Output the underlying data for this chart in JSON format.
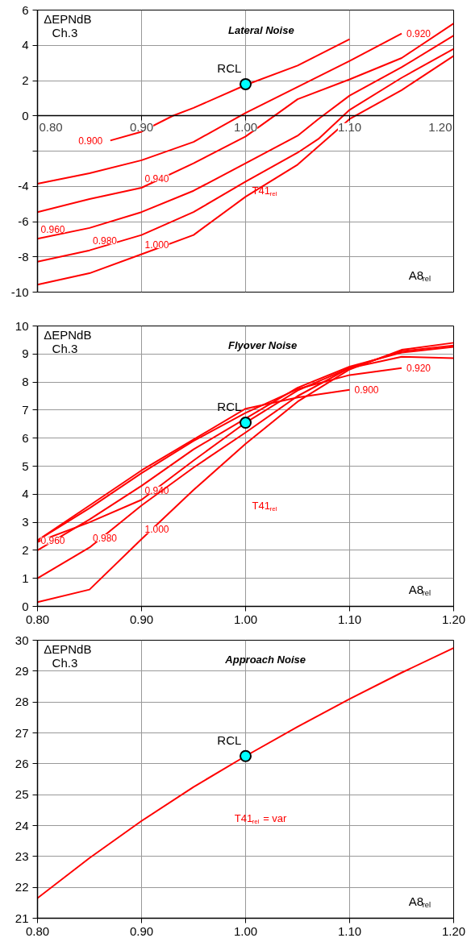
{
  "chart_data": [
    {
      "type": "line",
      "title": "Lateral Noise",
      "xlabel": "A8$_{rel}$",
      "ylabel": "ΔEPNdB",
      "annotations": [
        "Ch.3",
        "T41$_{rel}$"
      ],
      "grid": true,
      "marker": "none",
      "line_style": "solid",
      "xlim": [
        0.8,
        1.2
      ],
      "xticks": [
        {
          "value": 0.8,
          "label": "0.80"
        },
        {
          "value": 0.9,
          "label": "0.90"
        },
        {
          "value": 1.0,
          "label": "1.00"
        },
        {
          "value": 1.1,
          "label": "1.10"
        },
        {
          "value": 1.2,
          "label": "1.20"
        }
      ],
      "ylim": [
        -10,
        6
      ],
      "yticks": [
        -10,
        -8,
        -6,
        -4,
        {
          "value": -2,
          "label": null
        },
        0,
        2,
        4,
        6
      ],
      "series": [
        {
          "name": "0.900",
          "color": "#ff0000",
          "x": [
            0.87,
            0.9,
            0.93,
            0.95,
            1.0,
            1.05,
            1.1
          ],
          "values": [
            -1.4,
            -0.9,
            0.0,
            0.45,
            1.75,
            2.85,
            4.35
          ]
        },
        {
          "name": "0.920",
          "color": "#ff0000",
          "x": [
            0.8,
            0.85,
            0.9,
            0.95,
            1.0,
            1.05,
            1.1,
            1.15
          ],
          "values": [
            -3.85,
            -3.26,
            -2.52,
            -1.48,
            0.17,
            1.64,
            3.11,
            4.67
          ]
        },
        {
          "name": "0.940",
          "color": "#ff0000",
          "x": [
            0.8,
            0.85,
            0.9,
            0.95,
            1.0,
            1.05,
            1.1,
            1.15,
            1.2
          ],
          "values": [
            -5.46,
            -4.72,
            -4.08,
            -2.69,
            -1.17,
            0.94,
            2.07,
            3.28,
            5.24
          ]
        },
        {
          "name": "0.960",
          "color": "#ff0000",
          "x": [
            0.8,
            0.85,
            0.9,
            0.95,
            1.0,
            1.05,
            1.07,
            1.1,
            1.15,
            1.2
          ],
          "values": [
            -6.97,
            -6.36,
            -5.46,
            -4.25,
            -2.69,
            -1.13,
            -0.18,
            1.15,
            2.76,
            4.55
          ]
        },
        {
          "name": "0.980",
          "color": "#ff0000",
          "x": [
            0.8,
            0.85,
            0.9,
            0.95,
            1.0,
            1.05,
            1.07,
            1.1,
            1.15,
            1.2
          ],
          "values": [
            -8.27,
            -7.63,
            -6.76,
            -5.46,
            -3.73,
            -2.09,
            -1.31,
            0.34,
            2.16,
            3.8
          ]
        },
        {
          "name": "1.000",
          "color": "#ff0000",
          "x": [
            0.8,
            0.85,
            0.9,
            0.95,
            1.0,
            1.05,
            1.1,
            1.15,
            1.2
          ],
          "values": [
            -9.58,
            -8.93,
            -7.85,
            -6.76,
            -4.59,
            -2.77,
            -0.18,
            1.46,
            3.4
          ]
        },
        {
          "name": "RCL",
          "type": "scatter",
          "marker": "circle",
          "color": "#00ffff",
          "x": [
            1.0
          ],
          "values": [
            1.8
          ]
        }
      ]
    },
    {
      "type": "line",
      "title": "Flyover Noise",
      "xlabel": "A8$_{rel}$",
      "ylabel": "ΔEPNdB",
      "annotations": [
        "Ch.3",
        "T41$_{rel}$"
      ],
      "grid": true,
      "marker": "none",
      "line_style": "solid",
      "xlim": [
        0.8,
        1.2
      ],
      "xticks": [
        {
          "value": 0.8,
          "label": "0.80"
        },
        {
          "value": 0.9,
          "label": "0.90"
        },
        {
          "value": 1.0,
          "label": "1.00"
        },
        {
          "value": 1.1,
          "label": "1.10"
        },
        {
          "value": 1.2,
          "label": "1.20"
        }
      ],
      "ylim": [
        0,
        10
      ],
      "yticks": [
        0,
        1,
        2,
        3,
        4,
        5,
        6,
        7,
        8,
        9,
        10
      ],
      "series": [
        {
          "name": "0.900",
          "color": "#ff0000",
          "x": [
            0.8,
            0.85,
            0.9,
            0.95,
            1.0,
            1.05,
            1.1
          ],
          "values": [
            2.35,
            3.6,
            4.85,
            5.95,
            7.05,
            7.45,
            7.72
          ]
        },
        {
          "name": "0.920",
          "color": "#ff0000",
          "x": [
            0.8,
            0.85,
            0.9,
            0.95,
            1.0,
            1.05,
            1.1,
            1.15
          ],
          "values": [
            2.35,
            3.5,
            4.75,
            5.9,
            6.9,
            7.75,
            8.25,
            8.5
          ]
        },
        {
          "name": "0.940",
          "color": "#ff0000",
          "x": [
            0.8,
            0.85,
            0.9,
            0.95,
            1.0,
            1.05,
            1.1,
            1.15,
            1.2
          ],
          "values": [
            2.3,
            3.0,
            3.8,
            5.2,
            6.55,
            7.7,
            8.5,
            8.9,
            8.85
          ]
        },
        {
          "name": "0.960",
          "color": "#ff0000",
          "x": [
            0.8,
            0.85,
            0.9,
            0.95,
            1.0,
            1.05,
            1.1,
            1.15,
            1.2
          ],
          "values": [
            2.0,
            3.1,
            4.3,
            5.6,
            6.7,
            7.8,
            8.55,
            9.05,
            9.25
          ]
        },
        {
          "name": "0.980",
          "color": "#ff0000",
          "x": [
            0.8,
            0.85,
            0.9,
            0.95,
            1.0,
            1.05,
            1.1,
            1.15,
            1.2
          ],
          "values": [
            1.0,
            2.1,
            3.6,
            4.95,
            6.2,
            7.5,
            8.5,
            9.1,
            9.3
          ]
        },
        {
          "name": "1.000",
          "color": "#ff0000",
          "x": [
            0.8,
            0.85,
            0.9,
            0.95,
            1.0,
            1.05,
            1.1,
            1.15,
            1.2
          ],
          "values": [
            0.15,
            0.6,
            2.4,
            4.15,
            5.8,
            7.3,
            8.45,
            9.15,
            9.4
          ]
        },
        {
          "name": "RCL",
          "type": "scatter",
          "marker": "circle",
          "color": "#00ffff",
          "x": [
            1.0
          ],
          "values": [
            6.55
          ]
        }
      ]
    },
    {
      "type": "line",
      "title": "Approach Noise",
      "xlabel": "A8$_{rel}$",
      "ylabel": "ΔEPNdB",
      "annotations": [
        "Ch.3",
        "T41$_{rel}$ = var"
      ],
      "grid": true,
      "marker": "none",
      "line_style": "solid",
      "xlim": [
        0.8,
        1.2
      ],
      "xticks": [
        {
          "value": 0.8,
          "label": "0.80"
        },
        {
          "value": 0.9,
          "label": "0.90"
        },
        {
          "value": 1.0,
          "label": "1.00"
        },
        {
          "value": 1.1,
          "label": "1.10"
        },
        {
          "value": 1.2,
          "label": "1.20"
        }
      ],
      "ylim": [
        21,
        30
      ],
      "yticks": [
        21,
        22,
        23,
        24,
        25,
        26,
        27,
        28,
        29,
        30
      ],
      "series": [
        {
          "color": "#ff0000",
          "x": [
            0.8,
            0.85,
            0.9,
            0.95,
            1.0,
            1.05,
            1.1,
            1.15,
            1.2
          ],
          "values": [
            21.65,
            22.95,
            24.15,
            25.25,
            26.25,
            27.2,
            28.1,
            28.95,
            29.75
          ]
        },
        {
          "name": "RCL",
          "type": "scatter",
          "marker": "circle",
          "color": "#00ffff",
          "x": [
            1.0
          ],
          "values": [
            26.25
          ]
        }
      ]
    }
  ]
}
